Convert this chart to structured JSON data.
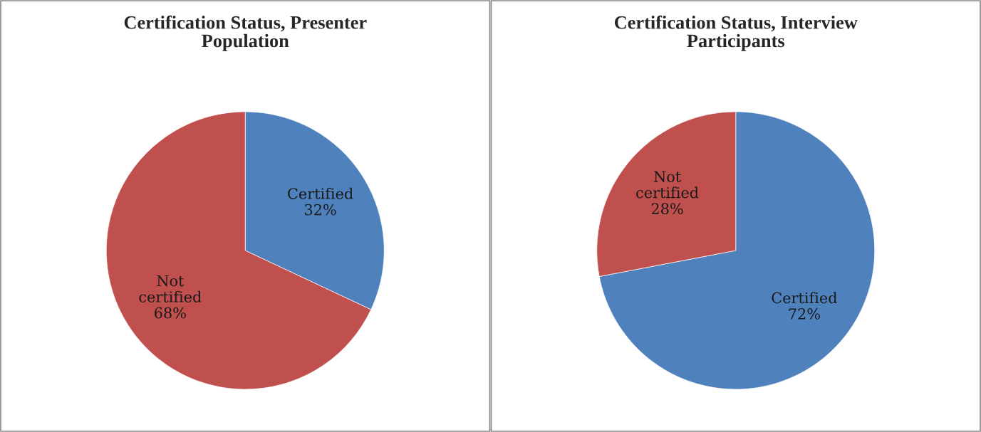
{
  "chart_data": [
    {
      "type": "pie",
      "title": "Certification Status, Presenter\nPopulation",
      "categories": [
        "Certified",
        "Not certified"
      ],
      "values": [
        32,
        68
      ],
      "colors": [
        "#4f81bd",
        "#c0504d"
      ],
      "value_labels": [
        "32%",
        "68%"
      ]
    },
    {
      "type": "pie",
      "title": "Certification Status, Interview\nParticipants",
      "categories": [
        "Certified",
        "Not certified"
      ],
      "values": [
        72,
        28
      ],
      "colors": [
        "#4f81bd",
        "#c0504d"
      ],
      "value_labels": [
        "72%",
        "28%"
      ]
    }
  ]
}
